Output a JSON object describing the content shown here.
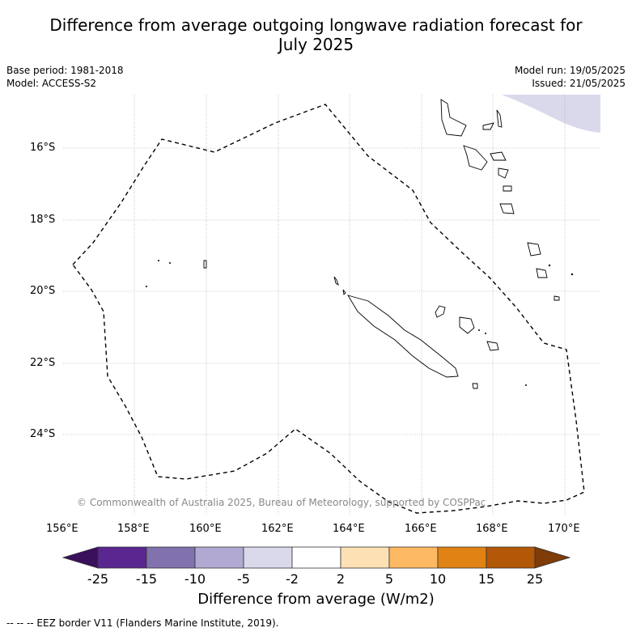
{
  "title_line1": "Difference from average outgoing longwave radiation forecast for",
  "title_line2": "July 2025",
  "base_period": "Base period: 1981-2018",
  "model": "Model: ACCESS-S2",
  "model_run": "Model run: 19/05/2025",
  "issued": "Issued: 21/05/2025",
  "lat_labels": [
    "16°S",
    "18°S",
    "20°S",
    "22°S",
    "24°S"
  ],
  "lon_labels": [
    "156°E",
    "158°E",
    "160°E",
    "162°E",
    "164°E",
    "166°E",
    "168°E",
    "170°E"
  ],
  "copyright": "© Commonwealth of Australia 2025, Bureau of Meteorology, supported by COSPPac",
  "colorbar": {
    "ticks": [
      "-25",
      "-15",
      "-10",
      "-5",
      "-2",
      "2",
      "5",
      "10",
      "15",
      "25"
    ],
    "colors": [
      "#3a0f5c",
      "#5a2690",
      "#8172ad",
      "#b1a9d2",
      "#d9d9eb",
      "#ffffff",
      "#fee0b5",
      "#fdb863",
      "#e08214",
      "#b35806",
      "#7f3b08"
    ],
    "label": "Difference from average (W/m2)"
  },
  "footer": "--  --  -- EEZ border V11 (Flanders Marine Institute, 2019)."
}
